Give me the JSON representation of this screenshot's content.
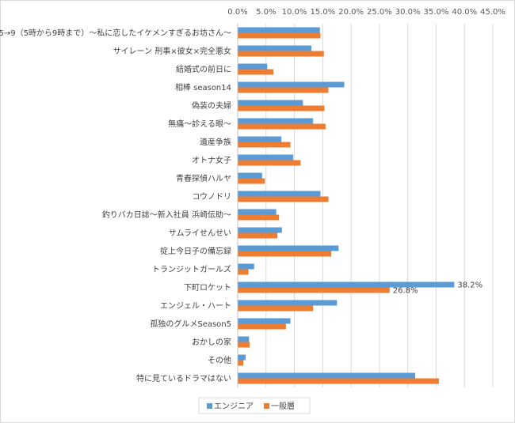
{
  "chart_data": {
    "type": "bar",
    "orientation": "horizontal",
    "title": "",
    "xlabel": "",
    "ylabel": "",
    "xlim": [
      0,
      45
    ],
    "x_ticks": [
      "0.0%",
      "5.0%",
      "10.0%",
      "15.0%",
      "20.0%",
      "25.0%",
      "30.0%",
      "35.0%",
      "40.0%",
      "45.0%"
    ],
    "grid": true,
    "legend_position": "bottom",
    "categories": [
      "5→9（5時から9時まで）～私に恋したイケメンすぎるお坊さん～",
      "サイレーン 刑事×彼女×完全悪女",
      "結婚式の前日に",
      "相棒 season14",
      "偽装の夫婦",
      "無痛～診える眼～",
      "遺産争族",
      "オトナ女子",
      "青春探偵ハルヤ",
      "コウノドリ",
      "釣りバカ日誌～新入社員 浜崎伝助～",
      "サムライせんせい",
      "掟上今日子の備忘録",
      "トランジットガールズ",
      "下町ロケット",
      "エンジェル・ハート",
      "孤独のグルメSeason5",
      "おかしの家",
      "その他",
      "特に見ているドラマはない"
    ],
    "series": [
      {
        "name": "エンジニア",
        "color": "#5b9bd5",
        "values": [
          14.5,
          13.0,
          5.2,
          18.8,
          11.5,
          13.3,
          7.7,
          9.8,
          4.3,
          14.6,
          6.8,
          7.8,
          17.8,
          2.9,
          38.2,
          17.5,
          9.3,
          2.0,
          1.4,
          31.3
        ]
      },
      {
        "name": "一般層",
        "color": "#ed7d31",
        "values": [
          14.6,
          15.2,
          6.3,
          16.0,
          15.3,
          15.5,
          9.3,
          11.1,
          4.8,
          16.0,
          7.3,
          7.0,
          16.5,
          1.9,
          26.8,
          13.3,
          8.5,
          2.1,
          1.0,
          35.5
        ]
      }
    ],
    "data_labels": [
      {
        "series": 0,
        "category": 14,
        "text": "38.2%"
      },
      {
        "series": 1,
        "category": 14,
        "text": "26.8%"
      }
    ]
  }
}
